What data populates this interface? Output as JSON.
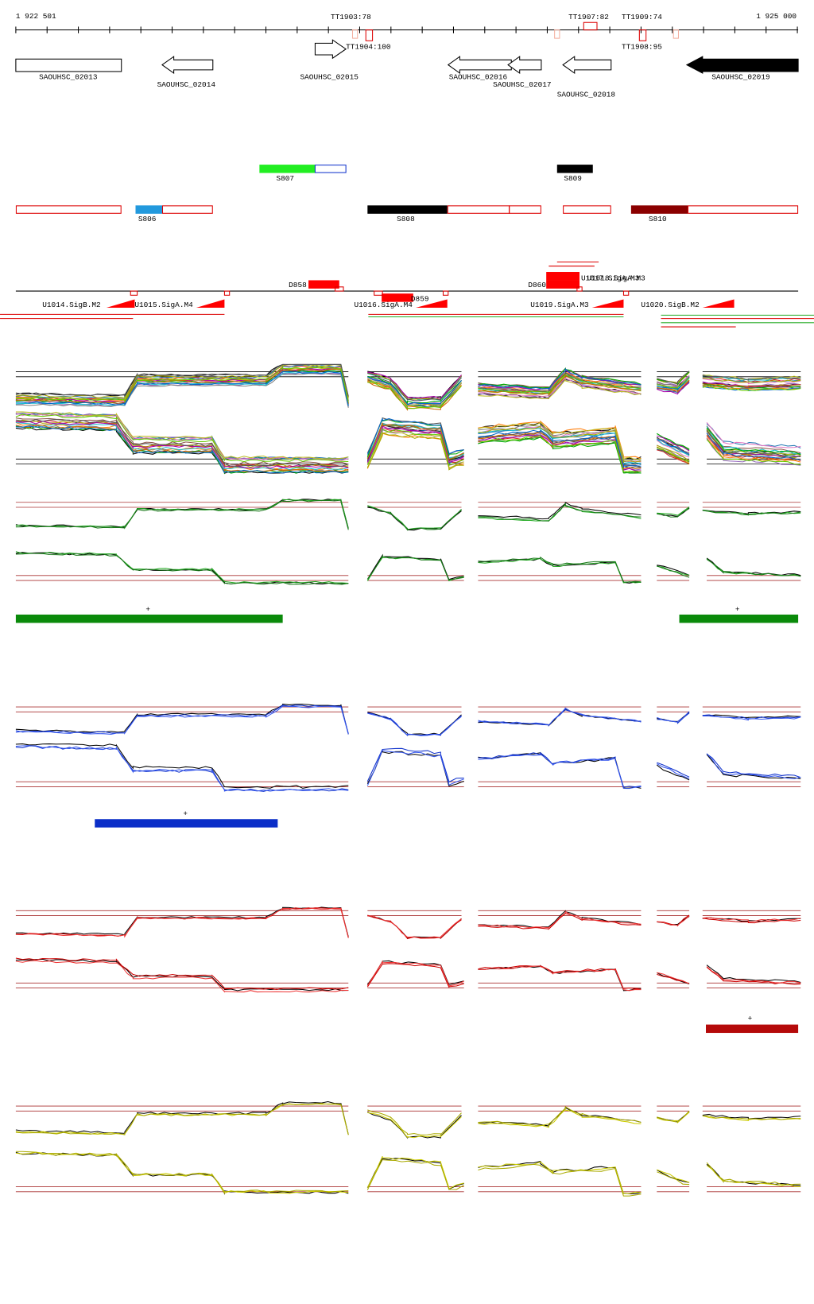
{
  "ruler": {
    "start": "1 922 501",
    "end": "1 925 000"
  },
  "terminators": [
    "TT1903:78",
    "TT1904:100",
    "TT1907:82",
    "TT1909:74",
    "TT1908:95"
  ],
  "genes": [
    "SAOUHSC_02013",
    "SAOUHSC_02014",
    "SAOUHSC_02015",
    "SAOUHSC_02016",
    "SAOUHSC_02017",
    "SAOUHSC_02018",
    "SAOUHSC_02019"
  ],
  "segments": [
    "S807",
    "S809",
    "S806",
    "S808",
    "S810"
  ],
  "promoters": [
    "D858",
    "D859",
    "D860",
    "U1014.SigB.M2",
    "U1015.SigA.M4",
    "U1016.SigA.M4",
    "U1019.SigA.M3",
    "U1020.SigB.M2",
    "U1017.SigA.M3",
    "U1018.SigA.M3"
  ],
  "signs": [
    "+",
    "+",
    "+",
    "+"
  ]
}
